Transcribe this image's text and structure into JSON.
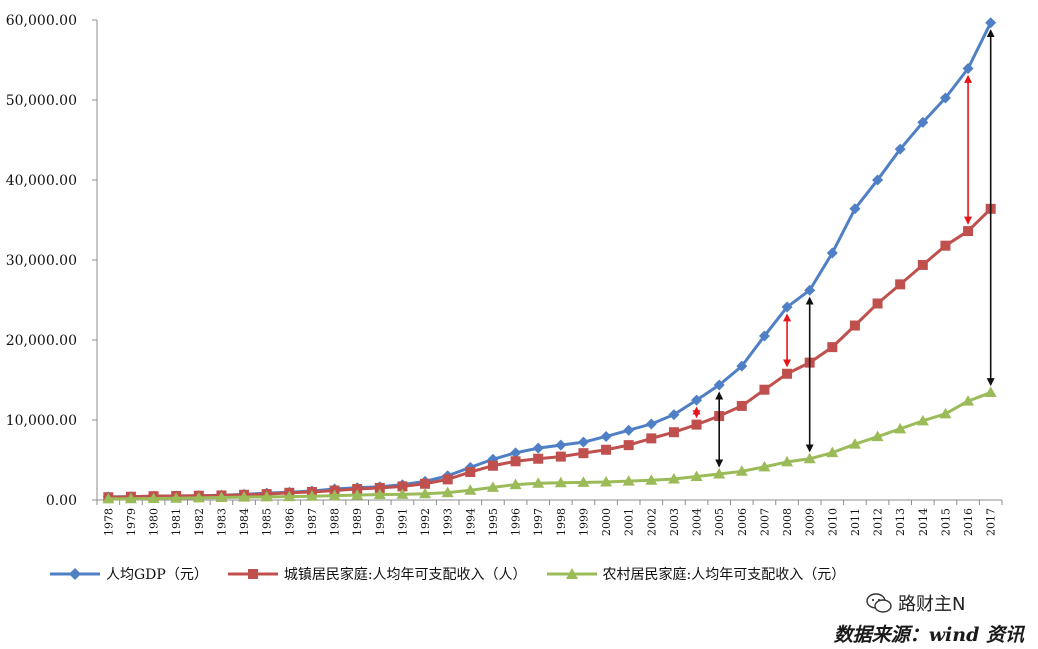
{
  "chart_data": {
    "type": "line",
    "x": [
      "1978",
      "1979",
      "1980",
      "1981",
      "1982",
      "1983",
      "1984",
      "1985",
      "1986",
      "1987",
      "1988",
      "1989",
      "1990",
      "1991",
      "1992",
      "1993",
      "1994",
      "1995",
      "1996",
      "1997",
      "1998",
      "1999",
      "2000",
      "2001",
      "2002",
      "2003",
      "2004",
      "2005",
      "2006",
      "2007",
      "2008",
      "2009",
      "2010",
      "2011",
      "2012",
      "2013",
      "2014",
      "2015",
      "2016",
      "2017"
    ],
    "ylim": [
      0,
      60000
    ],
    "yticks": [
      0,
      10000,
      20000,
      30000,
      40000,
      50000,
      60000
    ],
    "ytick_labels": [
      "0.00",
      "10,000.00",
      "20,000.00",
      "30,000.00",
      "40,000.00",
      "50,000.00",
      "60,000.00"
    ],
    "series": [
      {
        "name": "人均GDP（元）",
        "color": "#4f7fc4",
        "marker": "diamond",
        "values": [
          385,
          423,
          468,
          497,
          533,
          592,
          700,
          866,
          973,
          1123,
          1378,
          1536,
          1663,
          1912,
          2334,
          3027,
          4081,
          5091,
          5898,
          6481,
          6860,
          7229,
          7942,
          8717,
          9506,
          10666,
          12487,
          14368,
          16738,
          20505,
          24121,
          26222,
          30876,
          36403,
          40007,
          43852,
          47203,
          50251,
          53935,
          59660
        ]
      },
      {
        "name": "城镇居民家庭:人均年可支配收入（人）",
        "color": "#c0504d",
        "marker": "square",
        "values": [
          343,
          405,
          478,
          500,
          535,
          565,
          652,
          739,
          900,
          1002,
          1180,
          1374,
          1510,
          1701,
          2027,
          2577,
          3496,
          4283,
          4839,
          5160,
          5425,
          5854,
          6280,
          6860,
          7703,
          8472,
          9422,
          10493,
          11760,
          13786,
          15781,
          17175,
          19109,
          21810,
          24565,
          26955,
          29381,
          31790,
          33616,
          36396
        ]
      },
      {
        "name": "农村居民家庭:人均年可支配收入（元）",
        "color": "#9bbb59",
        "marker": "triangle",
        "values": [
          134,
          160,
          191,
          223,
          270,
          310,
          355,
          398,
          424,
          463,
          545,
          602,
          686,
          709,
          784,
          922,
          1221,
          1578,
          1926,
          2090,
          2162,
          2210,
          2253,
          2366,
          2476,
          2622,
          2936,
          3255,
          3587,
          4140,
          4761,
          5153,
          5919,
          6977,
          7917,
          8896,
          9892,
          10772,
          12363,
          13432
        ]
      }
    ],
    "gap_arrows": [
      {
        "x": "2004",
        "from": 9422,
        "to": 12487,
        "color": "#e8141b"
      },
      {
        "x": "2005",
        "from": 3255,
        "to": 14368,
        "color": "#111111"
      },
      {
        "x": "2008",
        "from": 15781,
        "to": 24121,
        "color": "#e8141b"
      },
      {
        "x": "2009",
        "from": 5153,
        "to": 26222,
        "color": "#111111"
      },
      {
        "x": "2016",
        "from": 33616,
        "to": 53935,
        "color": "#e8141b"
      },
      {
        "x": "2017",
        "from": 13432,
        "to": 59660,
        "color": "#111111"
      }
    ],
    "title": "",
    "xlabel": "",
    "ylabel": "",
    "legend_position": "bottom",
    "grid": false
  },
  "watermark": {
    "text": "路财主N",
    "icon": "wechat-icon"
  },
  "source": "数据来源：wind 资讯"
}
